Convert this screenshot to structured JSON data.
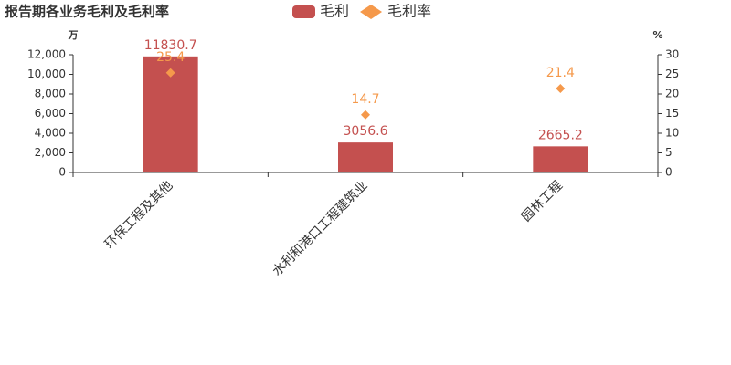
{
  "chart_data": {
    "type": "bar",
    "title": "报告期各业务毛利及毛利率",
    "categories": [
      "环保工程及其他",
      "水利和港口工程建筑业",
      "园林工程"
    ],
    "series": [
      {
        "name": "毛利",
        "color": "#c4504f",
        "values": [
          11830.7,
          3056.6,
          2665.2
        ]
      },
      {
        "name": "毛利率",
        "type": "scatter",
        "axis": "y2",
        "color": "#f5994b",
        "values": [
          25.4,
          14.7,
          21.4
        ]
      }
    ],
    "y_unit": "万",
    "y2_unit": "%",
    "ylim": [
      0,
      12000
    ],
    "yticks": [
      0,
      {
        "value": 2000,
        "label": "2,000"
      },
      {
        "value": 4000,
        "label": "4,000"
      },
      {
        "value": 6000,
        "label": "6,000"
      },
      {
        "value": 8000,
        "label": "8,000"
      },
      {
        "value": 10000,
        "label": "10,000"
      },
      {
        "value": 12000,
        "label": "12,000"
      }
    ],
    "y2lim": [
      0,
      30
    ],
    "y2ticks": [
      0,
      5,
      10,
      15,
      20,
      25,
      30
    ]
  }
}
